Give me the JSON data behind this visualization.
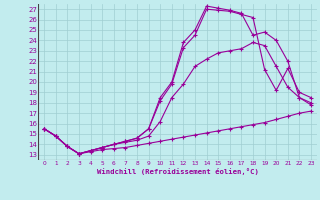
{
  "xlabel": "Windchill (Refroidissement éolien,°C)",
  "bg_color": "#c2ecee",
  "grid_color": "#a0ced2",
  "line_color": "#990099",
  "xlim": [
    -0.5,
    23.5
  ],
  "ylim": [
    13,
    27
  ],
  "xticks": [
    0,
    1,
    2,
    3,
    4,
    5,
    6,
    7,
    8,
    9,
    10,
    11,
    12,
    13,
    14,
    15,
    16,
    17,
    18,
    19,
    20,
    21,
    22,
    23
  ],
  "yticks": [
    13,
    14,
    15,
    16,
    17,
    18,
    19,
    20,
    21,
    22,
    23,
    24,
    25,
    26,
    27
  ],
  "series": [
    [
      15.5,
      14.8,
      13.8,
      13.1,
      13.3,
      13.5,
      13.6,
      13.7,
      13.9,
      14.1,
      14.3,
      14.5,
      14.7,
      14.9,
      15.1,
      15.3,
      15.5,
      15.7,
      15.9,
      16.1,
      16.4,
      16.7,
      17.0,
      17.2
    ],
    [
      15.5,
      14.8,
      13.8,
      13.1,
      13.4,
      13.7,
      14.0,
      14.2,
      14.4,
      14.8,
      16.2,
      18.5,
      19.8,
      21.5,
      22.2,
      22.8,
      23.0,
      23.2,
      23.8,
      23.5,
      21.5,
      19.5,
      18.5,
      17.8
    ],
    [
      15.5,
      14.8,
      13.8,
      13.1,
      13.4,
      13.7,
      14.0,
      14.3,
      14.6,
      15.5,
      18.2,
      19.8,
      23.3,
      24.5,
      27.0,
      26.9,
      26.8,
      26.5,
      26.2,
      21.2,
      19.2,
      21.3,
      19.0,
      18.5
    ],
    [
      15.5,
      14.8,
      13.8,
      13.1,
      13.4,
      13.7,
      14.0,
      14.3,
      14.6,
      15.5,
      18.5,
      20.0,
      23.8,
      25.0,
      27.3,
      27.1,
      26.9,
      26.6,
      24.5,
      24.8,
      24.0,
      22.0,
      18.5,
      18.0
    ]
  ]
}
